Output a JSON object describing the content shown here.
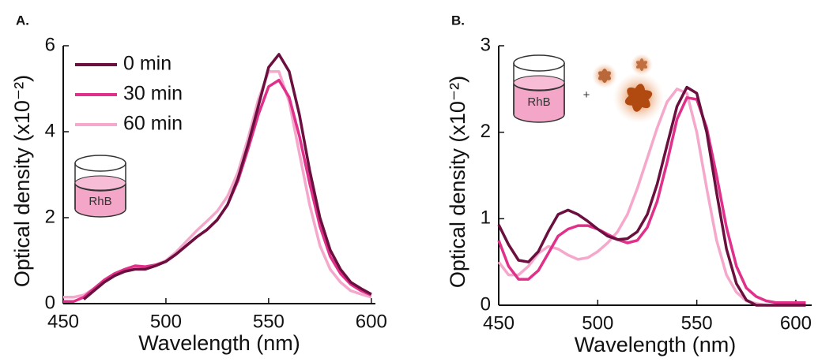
{
  "chart_data": [
    {
      "type": "line",
      "panel_label": "A.",
      "xlabel": "Wavelength (nm)",
      "ylabel": "Optical density (x10⁻²)",
      "xlim": [
        450,
        602
      ],
      "ylim": [
        0,
        6
      ],
      "xticks": [
        450,
        500,
        550,
        600
      ],
      "yticks": [
        0,
        2,
        4,
        6
      ],
      "legend": true,
      "annotations": [
        "RhB"
      ],
      "x": [
        450,
        455,
        460,
        465,
        470,
        475,
        480,
        485,
        490,
        495,
        500,
        505,
        510,
        515,
        520,
        525,
        530,
        535,
        540,
        545,
        550,
        555,
        560,
        565,
        570,
        575,
        580,
        585,
        590,
        595,
        600
      ],
      "series": [
        {
          "name": "0 min",
          "color": "#6b0f3f",
          "values": [
            null,
            null,
            0.1,
            0.3,
            0.5,
            0.65,
            0.75,
            0.8,
            0.8,
            0.88,
            0.98,
            1.15,
            1.35,
            1.55,
            1.72,
            1.95,
            2.3,
            2.9,
            3.7,
            4.6,
            5.5,
            5.8,
            5.4,
            4.4,
            3.1,
            2.0,
            1.25,
            0.8,
            0.5,
            0.35,
            0.22
          ]
        },
        {
          "name": "30 min",
          "color": "#e0308a",
          "values": [
            0.05,
            0.05,
            0.15,
            0.35,
            0.55,
            0.7,
            0.8,
            0.88,
            0.86,
            0.9,
            0.98,
            1.15,
            1.35,
            1.55,
            1.72,
            1.95,
            2.3,
            2.85,
            3.6,
            4.4,
            5.05,
            5.2,
            4.8,
            3.9,
            2.8,
            1.8,
            1.1,
            0.7,
            0.45,
            0.3,
            0.2
          ]
        },
        {
          "name": "60 min",
          "color": "#f5a8cc",
          "values": [
            0.15,
            0.15,
            0.2,
            0.35,
            0.55,
            0.7,
            0.78,
            0.82,
            0.82,
            0.9,
            1.0,
            1.2,
            1.45,
            1.7,
            1.92,
            2.15,
            2.5,
            3.05,
            3.85,
            4.75,
            5.4,
            5.4,
            4.7,
            3.5,
            2.3,
            1.35,
            0.8,
            0.5,
            0.3,
            0.22,
            0.15
          ]
        }
      ]
    },
    {
      "type": "line",
      "panel_label": "B.",
      "xlabel": "Wavelength (nm)",
      "ylabel": "Optical density (x10⁻²)",
      "xlim": [
        450,
        608
      ],
      "ylim": [
        0,
        3
      ],
      "xticks": [
        450,
        500,
        550,
        600
      ],
      "yticks": [
        0,
        1,
        2,
        3
      ],
      "legend": false,
      "annotations": [
        "RhB",
        "+"
      ],
      "x": [
        450,
        455,
        460,
        465,
        470,
        475,
        480,
        485,
        490,
        495,
        500,
        505,
        510,
        515,
        520,
        525,
        530,
        535,
        540,
        545,
        550,
        555,
        560,
        565,
        570,
        575,
        580,
        585,
        590,
        595,
        600,
        605
      ],
      "series": [
        {
          "name": "0 min",
          "color": "#6b0f3f",
          "values": [
            0.93,
            0.7,
            0.52,
            0.5,
            0.62,
            0.85,
            1.05,
            1.1,
            1.05,
            0.97,
            0.88,
            0.8,
            0.76,
            0.77,
            0.85,
            1.05,
            1.4,
            1.85,
            2.3,
            2.52,
            2.45,
            2.0,
            1.3,
            0.65,
            0.25,
            0.06,
            0.0,
            0.0,
            0.0,
            0.0,
            0.0,
            0.0
          ]
        },
        {
          "name": "30 min",
          "color": "#e0308a",
          "values": [
            0.75,
            0.45,
            0.3,
            0.3,
            0.4,
            0.6,
            0.8,
            0.88,
            0.92,
            0.92,
            0.88,
            0.82,
            0.76,
            0.72,
            0.75,
            0.9,
            1.2,
            1.65,
            2.15,
            2.4,
            2.38,
            2.05,
            1.5,
            0.9,
            0.45,
            0.2,
            0.1,
            0.05,
            0.03,
            0.03,
            0.03,
            0.03
          ]
        },
        {
          "name": "60 min",
          "color": "#f5a8cc",
          "values": [
            0.5,
            0.35,
            0.35,
            0.45,
            0.6,
            0.68,
            0.65,
            0.58,
            0.53,
            0.55,
            0.62,
            0.72,
            0.85,
            1.05,
            1.35,
            1.7,
            2.05,
            2.35,
            2.5,
            2.45,
            2.0,
            1.35,
            0.75,
            0.35,
            0.15,
            0.05,
            0.02,
            0.0,
            0.0,
            0.0,
            0.0,
            0.0
          ]
        }
      ]
    }
  ]
}
